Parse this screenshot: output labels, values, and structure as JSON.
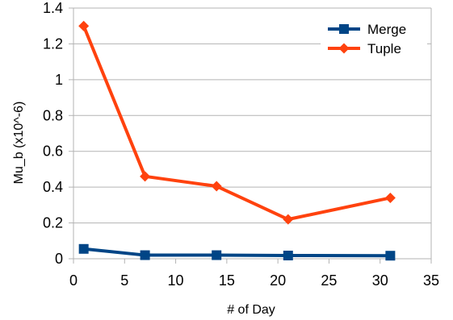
{
  "chart_data": {
    "type": "line",
    "title": "",
    "xlabel": "# of Day",
    "ylabel": "Mu_b (x10^-6)",
    "xlim": [
      0,
      35
    ],
    "ylim": [
      0,
      1.4
    ],
    "x_ticks": [
      "0",
      "5",
      "10",
      "15",
      "20",
      "25",
      "30",
      "35"
    ],
    "y_ticks": [
      "0",
      "0.2",
      "0.4",
      "0.6",
      "0.8",
      "1",
      "1.2",
      "1.4"
    ],
    "grid": "horizontal",
    "legend_position": "top-right",
    "series": [
      {
        "name": "Merge",
        "color": "#004586",
        "marker": "square",
        "x": [
          1,
          7,
          14,
          21,
          31
        ],
        "y": [
          0.055,
          0.02,
          0.02,
          0.018,
          0.017
        ]
      },
      {
        "name": "Tuple",
        "color": "#ff420e",
        "marker": "diamond",
        "x": [
          1,
          7,
          14,
          21,
          31
        ],
        "y": [
          1.3,
          0.46,
          0.405,
          0.22,
          0.34
        ]
      }
    ]
  }
}
